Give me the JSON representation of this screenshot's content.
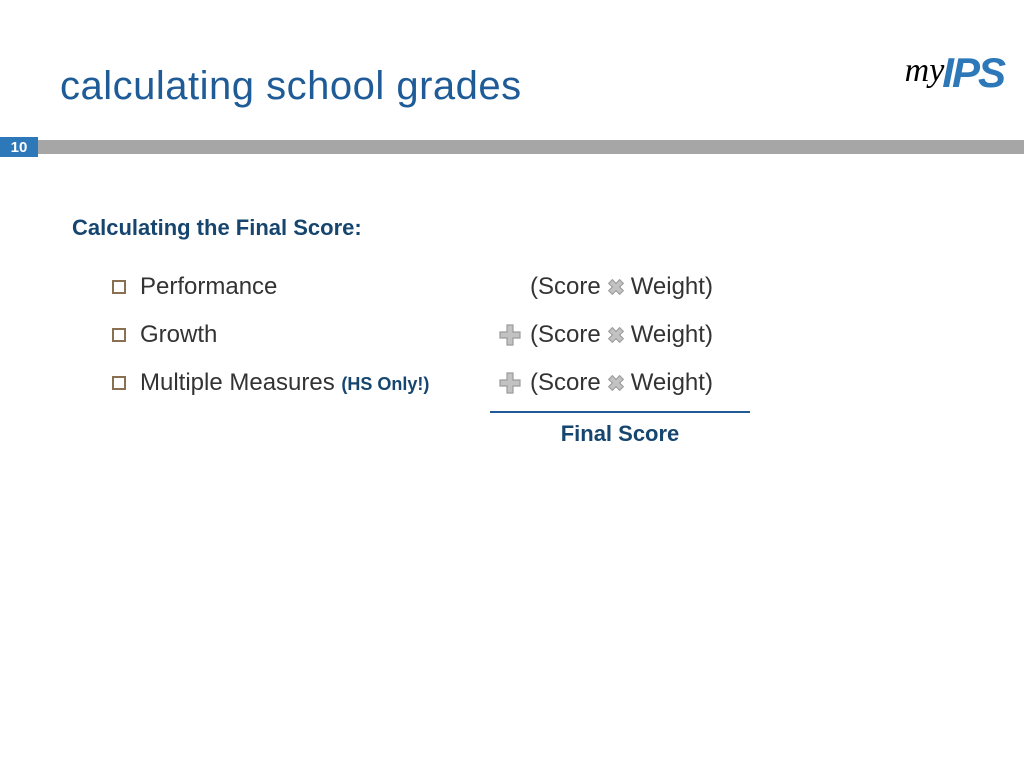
{
  "colors": {
    "primary": "#1f5b96",
    "accent": "#2d78b8",
    "bar_gray": "#a6a6a6",
    "icon_gray": "#9b9b9b",
    "icon_gray_light": "#c2c2c2",
    "bullet_border": "#8a7050",
    "text_body": "#333333",
    "subhead": "#16466f",
    "note": "#16466f"
  },
  "title": "calculating school grades",
  "logo": {
    "my": "my",
    "ips": "IPS"
  },
  "page_number": "10",
  "subhead": "Calculating the Final Score:",
  "rows": [
    {
      "label": "Performance",
      "note": "",
      "plus": false,
      "formula_left": "(Score",
      "formula_right": "Weight)"
    },
    {
      "label": "Growth",
      "note": "",
      "plus": true,
      "formula_left": "(Score",
      "formula_right": "Weight)"
    },
    {
      "label": "Multiple Measures ",
      "note": "(HS Only!)",
      "plus": true,
      "formula_left": "(Score",
      "formula_right": "Weight)"
    }
  ],
  "final_label": "Final Score"
}
